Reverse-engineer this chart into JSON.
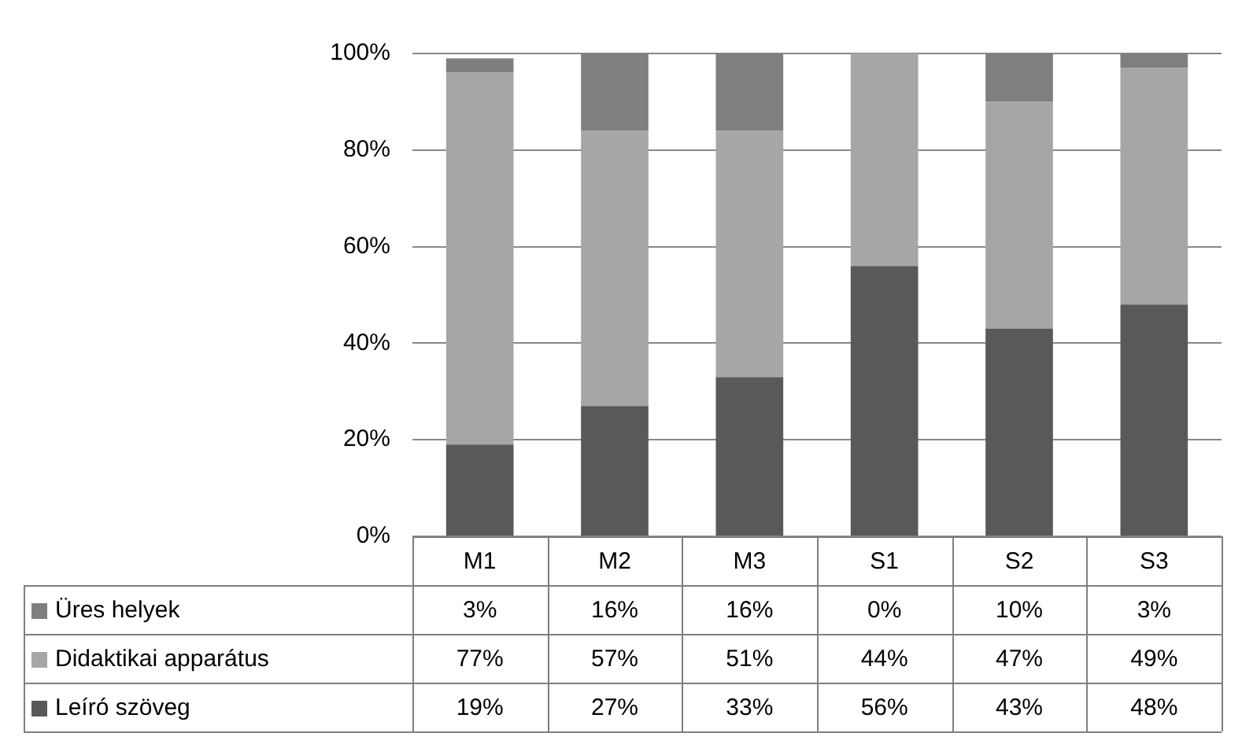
{
  "chart_data": {
    "type": "bar",
    "stacked": true,
    "categories": [
      "M1",
      "M2",
      "M3",
      "S1",
      "S2",
      "S3"
    ],
    "series": [
      {
        "name": "Leíró szöveg",
        "color": "#595959",
        "values": [
          19,
          27,
          33,
          56,
          43,
          48
        ],
        "value_labels": [
          "19%",
          "27%",
          "33%",
          "56%",
          "43%",
          "48%"
        ]
      },
      {
        "name": "Didaktikai apparátus",
        "color": "#a6a6a6",
        "values": [
          77,
          57,
          51,
          44,
          47,
          49
        ],
        "value_labels": [
          "77%",
          "57%",
          "51%",
          "44%",
          "47%",
          "49%"
        ]
      },
      {
        "name": "Üres helyek",
        "color": "#7f7f7f",
        "values": [
          3,
          16,
          16,
          0,
          10,
          3
        ],
        "value_labels": [
          "3%",
          "16%",
          "16%",
          "0%",
          "10%",
          "3%"
        ]
      }
    ],
    "ylim": [
      0,
      100
    ],
    "yticks": [
      {
        "value": 0,
        "label": "0%"
      },
      {
        "value": 20,
        "label": "20%"
      },
      {
        "value": 40,
        "label": "40%"
      },
      {
        "value": 60,
        "label": "60%"
      },
      {
        "value": 80,
        "label": "80%"
      },
      {
        "value": 100,
        "label": "100%"
      }
    ],
    "grid": "y",
    "legend": "bottom"
  }
}
